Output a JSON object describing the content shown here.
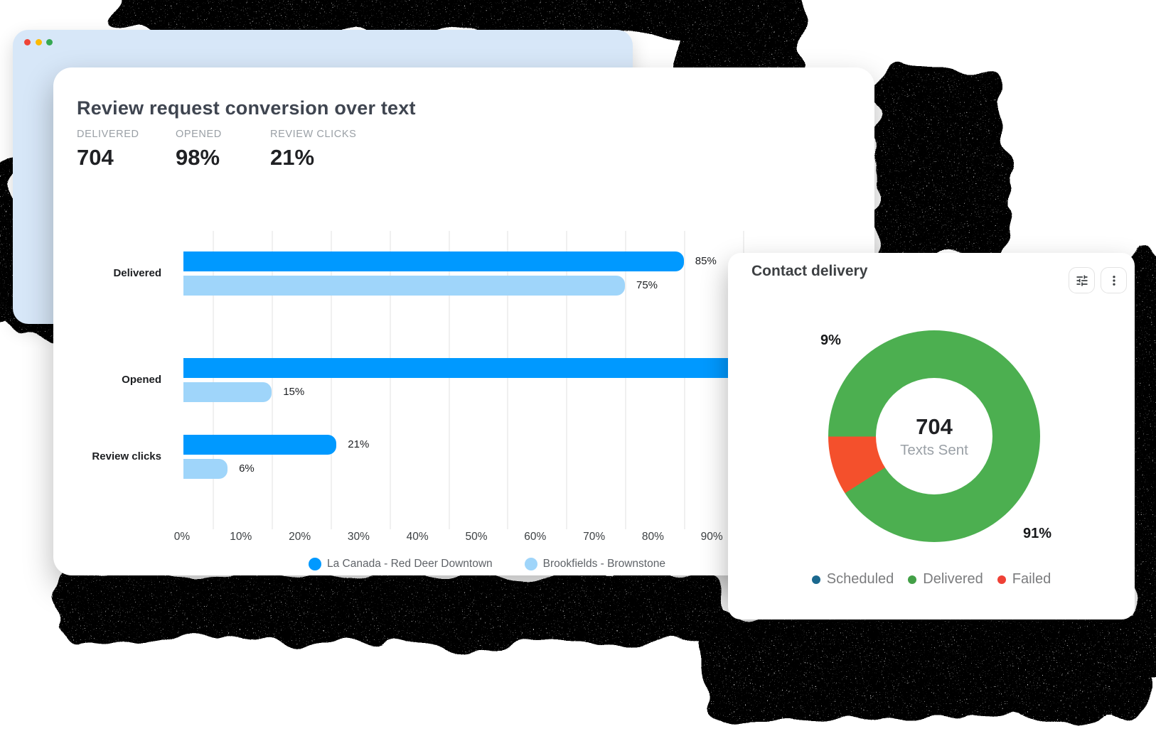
{
  "window": {
    "traffic_lights": [
      {
        "name": "close",
        "color": "#ef4437"
      },
      {
        "name": "minimize",
        "color": "#fcba03"
      },
      {
        "name": "zoom",
        "color": "#36a852"
      }
    ]
  },
  "review_card": {
    "title": "Review request conversion over text",
    "stats": [
      {
        "label": "DELIVERED",
        "value": "704"
      },
      {
        "label": "OPENED",
        "value": "98%"
      },
      {
        "label": "REVIEW CLICKS",
        "value": "21%"
      }
    ],
    "chart_data": {
      "type": "bar",
      "orientation": "horizontal",
      "title": "Review request conversion over text",
      "categories": [
        "Delivered",
        "Opened",
        "Review clicks"
      ],
      "series": [
        {
          "name": "La Canada - Red Deer Downtown",
          "color": "#0099ff",
          "values": [
            85,
            98,
            21
          ],
          "value_labels": [
            "85%",
            "98%",
            "21%"
          ],
          "bar_display_pct": [
            85,
            98,
            26
          ]
        },
        {
          "name": "Brookfields - Brownstone",
          "color": "#9fd5fa",
          "values": [
            75,
            15,
            6
          ],
          "value_labels": [
            "75%",
            "15%",
            "6%"
          ],
          "bar_display_pct": [
            75,
            15,
            7.5
          ]
        }
      ],
      "x_ticks": [
        "0%",
        "10%",
        "20%",
        "30%",
        "40%",
        "50%",
        "60%",
        "70%",
        "80%",
        "90%"
      ],
      "xlim": [
        0,
        100
      ],
      "grid": true,
      "legend_position": "bottom"
    }
  },
  "contact_card": {
    "title": "Contact delivery",
    "toolbar": [
      {
        "name": "filters",
        "icon": "tune-icon"
      },
      {
        "name": "more-options",
        "icon": "kebab-icon"
      }
    ],
    "chart_data": {
      "type": "pie",
      "donut": true,
      "center_value": "704",
      "center_label": "Texts Sent",
      "slices": [
        {
          "label": "Scheduled",
          "value": 0,
          "color": "#1a688e"
        },
        {
          "label": "Delivered",
          "value": 91,
          "color": "#4caf50"
        },
        {
          "label": "Failed",
          "value": 9,
          "color": "#f4502c"
        }
      ],
      "slice_callouts": [
        {
          "slice": "Failed",
          "text": "9%"
        },
        {
          "slice": "Delivered",
          "text": "91%"
        }
      ],
      "legend": [
        {
          "label": "Scheduled",
          "color": "#1a688e"
        },
        {
          "label": "Delivered",
          "color": "#43a047"
        },
        {
          "label": "Failed",
          "color": "#ef4136"
        }
      ],
      "legend_position": "bottom"
    }
  }
}
